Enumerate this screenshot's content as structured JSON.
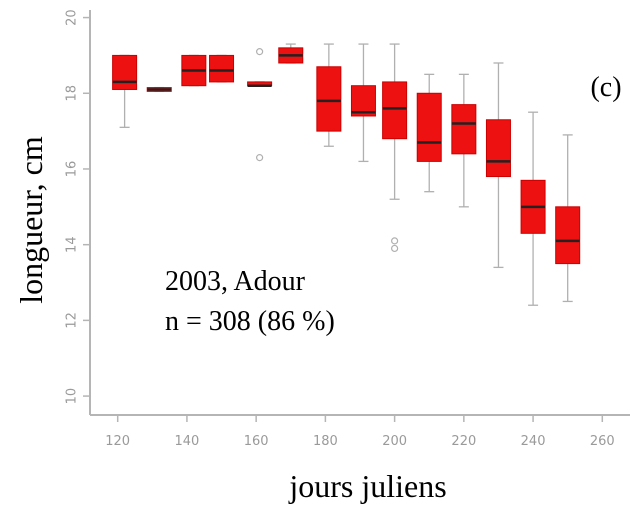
{
  "chart_data": {
    "type": "box",
    "title": "",
    "xlabel": "jours juliens",
    "ylabel": "longueur, cm",
    "xlim": [
      112,
      268
    ],
    "ylim": [
      9.5,
      20.2
    ],
    "xticks": [
      120,
      140,
      160,
      180,
      200,
      220,
      240,
      260
    ],
    "yticks": [
      10,
      12,
      14,
      16,
      18,
      20
    ],
    "panel_label": "(c)",
    "annotation": [
      "2003, Adour",
      "n = 308 (86 %)"
    ],
    "grid": false,
    "colors": {
      "box_fill": "#ee1111",
      "median": "#222222",
      "whisker": "#b0b0b0",
      "axis": "#b5b5b5"
    },
    "boxes": [
      {
        "x": 122,
        "q1": 18.1,
        "median": 18.3,
        "q3": 19.0,
        "whislo": 17.1,
        "whishi": 19.0,
        "outliers": []
      },
      {
        "x": 132,
        "q1": 18.05,
        "median": 18.1,
        "q3": 18.15,
        "whislo": 18.05,
        "whishi": 18.15,
        "outliers": []
      },
      {
        "x": 142,
        "q1": 18.2,
        "median": 18.6,
        "q3": 19.0,
        "whislo": 18.2,
        "whishi": 19.0,
        "outliers": []
      },
      {
        "x": 150,
        "q1": 18.3,
        "median": 18.6,
        "q3": 19.0,
        "whislo": 18.3,
        "whishi": 19.0,
        "outliers": []
      },
      {
        "x": 161,
        "q1": 18.2,
        "median": 18.2,
        "q3": 18.3,
        "whislo": 18.2,
        "whishi": 18.3,
        "outliers": [
          19.1,
          16.3
        ]
      },
      {
        "x": 170,
        "q1": 18.8,
        "median": 19.0,
        "q3": 19.2,
        "whislo": 18.8,
        "whishi": 19.3,
        "outliers": []
      },
      {
        "x": 181,
        "q1": 17.0,
        "median": 17.8,
        "q3": 18.7,
        "whislo": 16.6,
        "whishi": 19.3,
        "outliers": []
      },
      {
        "x": 191,
        "q1": 17.4,
        "median": 17.5,
        "q3": 18.2,
        "whislo": 16.2,
        "whishi": 19.3,
        "outliers": []
      },
      {
        "x": 200,
        "q1": 16.8,
        "median": 17.6,
        "q3": 18.3,
        "whislo": 15.2,
        "whishi": 19.3,
        "outliers": [
          13.9,
          14.1
        ]
      },
      {
        "x": 210,
        "q1": 16.2,
        "median": 16.7,
        "q3": 18.0,
        "whislo": 15.4,
        "whishi": 18.5,
        "outliers": []
      },
      {
        "x": 220,
        "q1": 16.4,
        "median": 17.2,
        "q3": 17.7,
        "whislo": 15.0,
        "whishi": 18.5,
        "outliers": []
      },
      {
        "x": 230,
        "q1": 15.8,
        "median": 16.2,
        "q3": 17.3,
        "whislo": 13.4,
        "whishi": 18.8,
        "outliers": []
      },
      {
        "x": 240,
        "q1": 14.3,
        "median": 15.0,
        "q3": 15.7,
        "whislo": 12.4,
        "whishi": 17.5,
        "outliers": []
      },
      {
        "x": 250,
        "q1": 13.5,
        "median": 14.1,
        "q3": 15.0,
        "whislo": 12.5,
        "whishi": 16.9,
        "outliers": []
      }
    ]
  }
}
